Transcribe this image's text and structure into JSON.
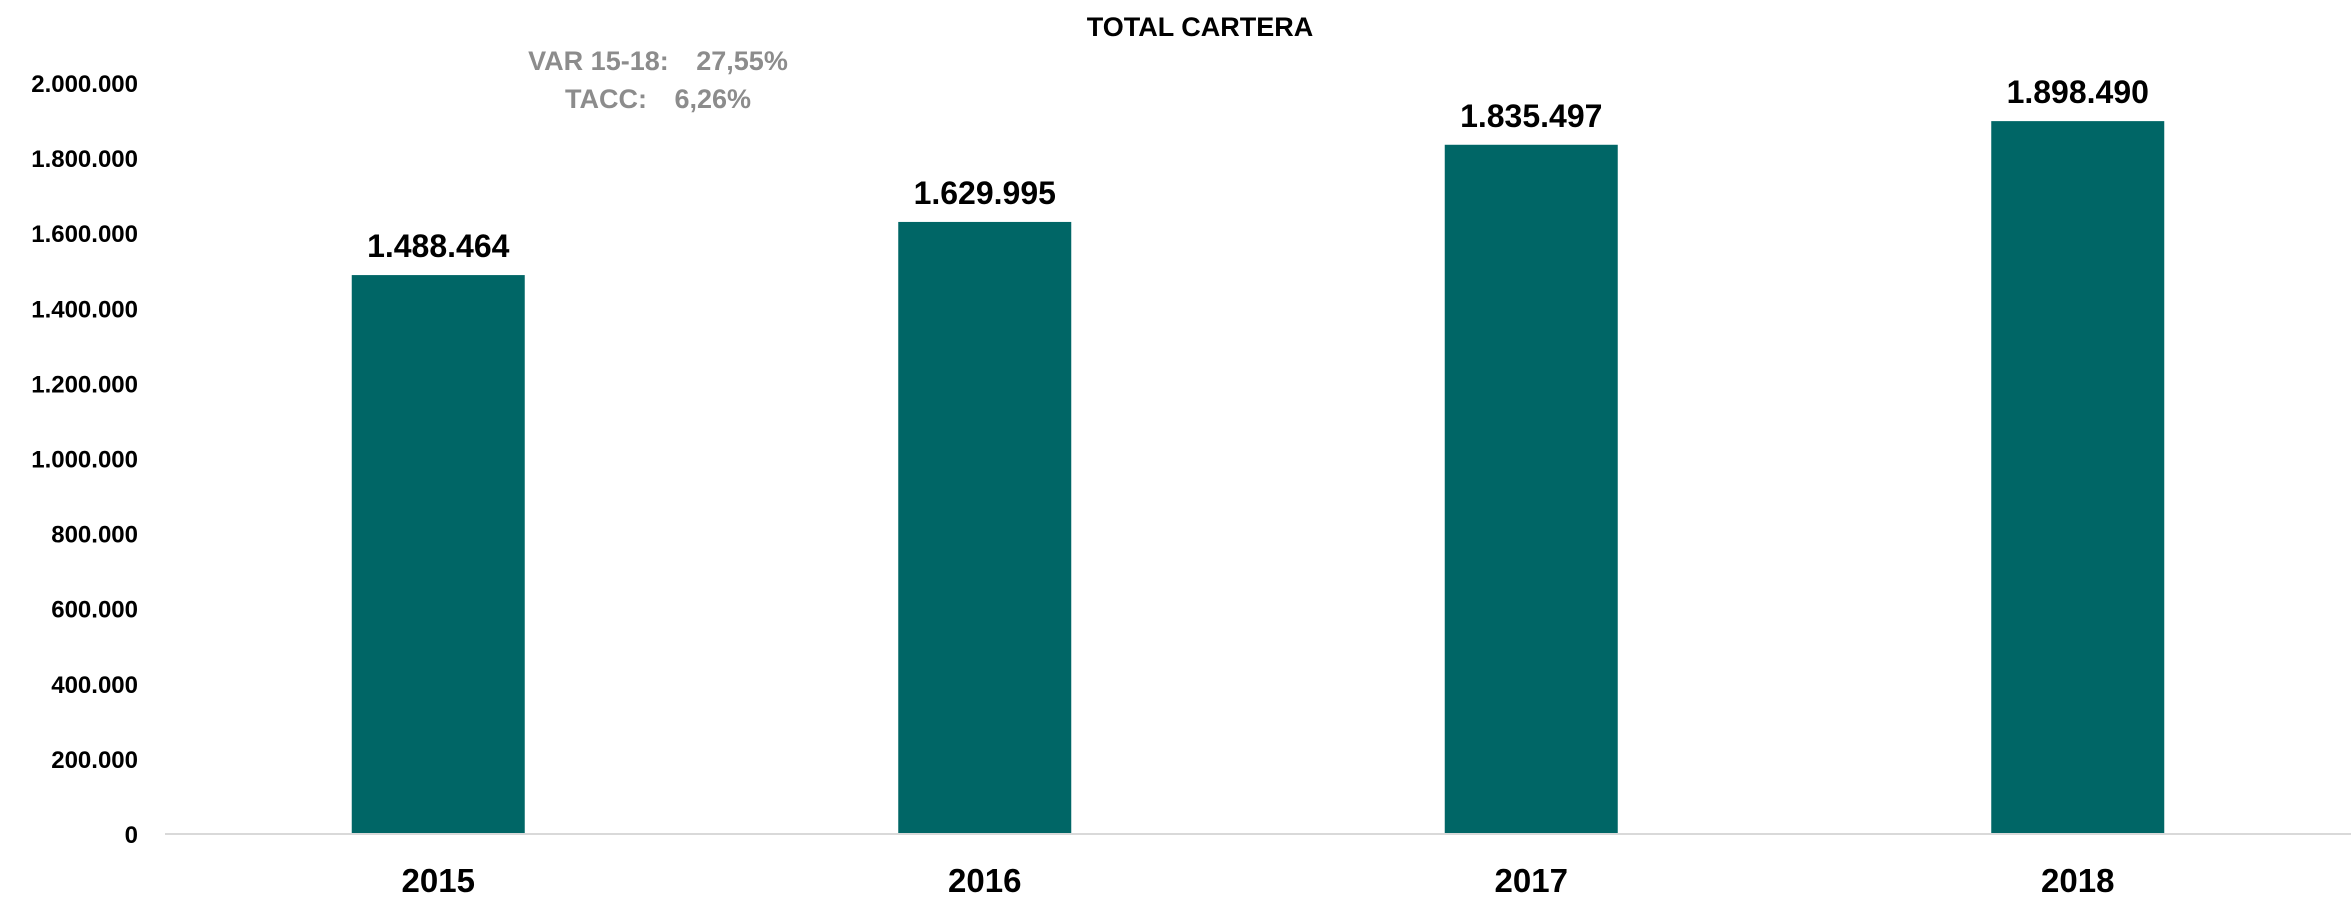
{
  "chart_data": {
    "type": "bar",
    "title": "TOTAL CARTERA",
    "xlabel": "",
    "ylabel": "",
    "categories": [
      "2015",
      "2016",
      "2017",
      "2018"
    ],
    "values": [
      1488464,
      1629995,
      1835497,
      1898490
    ],
    "data_labels": [
      "1.488.464",
      "1.629.995",
      "1.835.497",
      "1.898.490"
    ],
    "ylim": [
      0,
      2000000
    ],
    "y_ticks": [
      0,
      200000,
      400000,
      600000,
      800000,
      1000000,
      1200000,
      1400000,
      1600000,
      1800000,
      2000000
    ],
    "y_tick_labels": [
      "0",
      "200.000",
      "400.000",
      "600.000",
      "800.000",
      "1.000.000",
      "1.200.000",
      "1.400.000",
      "1.600.000",
      "1.800.000",
      "2.000.000"
    ],
    "grid": false,
    "legend": "none",
    "bar_color": "#006666",
    "axis_color": "#d9d9d9",
    "annotations": [
      {
        "label": "VAR 15-18:",
        "value": "27,55%"
      },
      {
        "label": "TACC:",
        "value": "6,26%"
      }
    ],
    "annotation_color": "#8c8c8c"
  }
}
